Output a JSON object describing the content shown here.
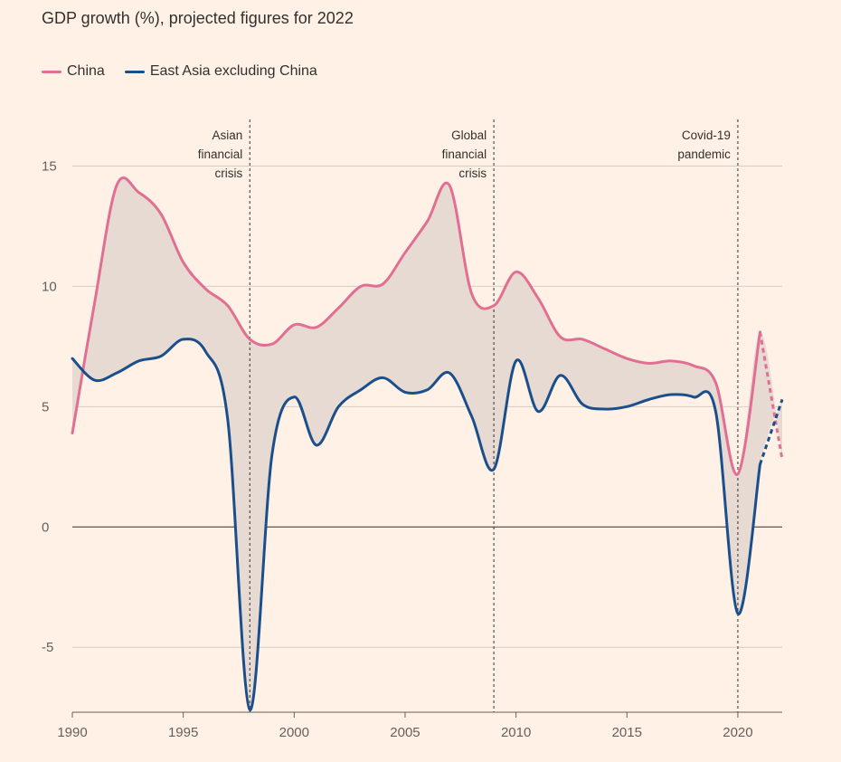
{
  "chart_data": {
    "type": "line",
    "title": "GDP growth (%), projected figures for 2022",
    "xlabel": "",
    "ylabel": "",
    "xlim": [
      1990,
      2022
    ],
    "ylim": [
      -7.7,
      17.5
    ],
    "yticks": [
      -5,
      0,
      5,
      10,
      15
    ],
    "xticks": [
      1990,
      1995,
      2000,
      2005,
      2010,
      2015,
      2020
    ],
    "projected_from": 2021,
    "colors": {
      "china": "#e16f94",
      "east_asia": "#1a4f8c",
      "fill": "#e6dad3",
      "grid": "#d9ccc3",
      "zero": "#33302e"
    },
    "series": [
      {
        "name": "China",
        "x": [
          1990,
          1991,
          1992,
          1993,
          1994,
          1995,
          1996,
          1997,
          1998,
          1999,
          2000,
          2001,
          2002,
          2003,
          2004,
          2005,
          2006,
          2007,
          2008,
          2009,
          2010,
          2011,
          2012,
          2013,
          2014,
          2015,
          2016,
          2017,
          2018,
          2019,
          2020,
          2021,
          2022
        ],
        "values": [
          3.9,
          9.3,
          14.2,
          13.9,
          13.0,
          11.0,
          9.9,
          9.2,
          7.8,
          7.6,
          8.4,
          8.3,
          9.1,
          10.0,
          10.1,
          11.4,
          12.7,
          14.2,
          9.7,
          9.2,
          10.6,
          9.5,
          7.9,
          7.8,
          7.4,
          7.0,
          6.8,
          6.9,
          6.7,
          6.0,
          2.2,
          8.1,
          2.8
        ]
      },
      {
        "name": "East Asia excluding China",
        "x": [
          1990,
          1991,
          1992,
          1993,
          1994,
          1995,
          1996,
          1997,
          1998,
          1999,
          2000,
          2001,
          2002,
          2003,
          2004,
          2005,
          2006,
          2007,
          2008,
          2009,
          2010,
          2011,
          2012,
          2013,
          2014,
          2015,
          2016,
          2017,
          2018,
          2019,
          2020,
          2021,
          2022
        ],
        "values": [
          7.0,
          6.1,
          6.4,
          6.9,
          7.1,
          7.8,
          7.3,
          4.5,
          -7.6,
          3.0,
          5.4,
          3.4,
          5.0,
          5.7,
          6.2,
          5.6,
          5.7,
          6.4,
          4.6,
          2.4,
          6.9,
          4.8,
          6.3,
          5.1,
          4.9,
          5.0,
          5.3,
          5.5,
          5.4,
          4.8,
          -3.6,
          2.6,
          5.3
        ]
      }
    ],
    "annotations": [
      {
        "x": 1998,
        "lines": [
          "Asian",
          "financial",
          "crisis"
        ]
      },
      {
        "x": 2009,
        "lines": [
          "Global",
          "financial",
          "crisis"
        ]
      },
      {
        "x": 2020,
        "lines": [
          "Covid-19",
          "pandemic"
        ]
      }
    ]
  }
}
